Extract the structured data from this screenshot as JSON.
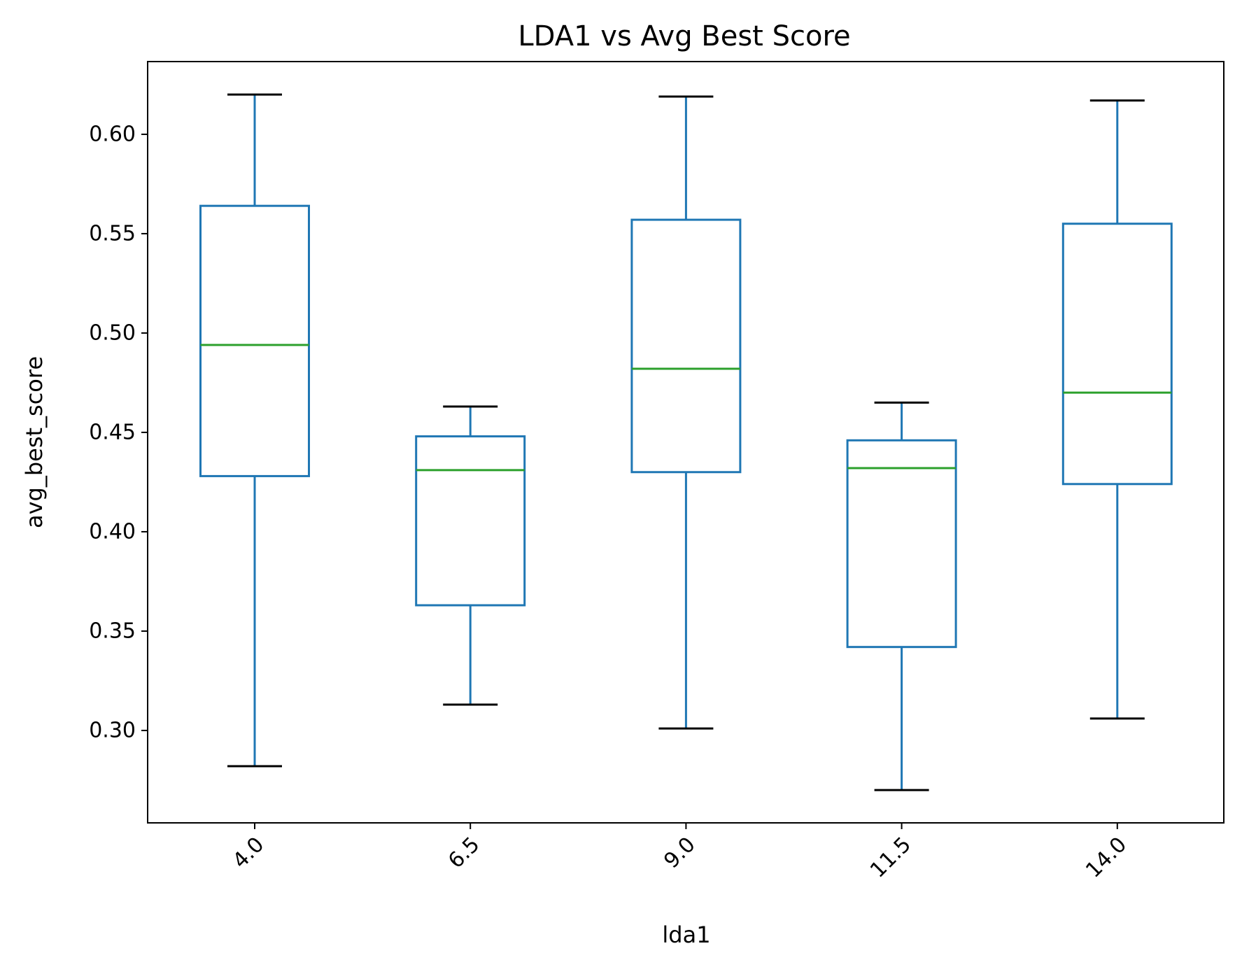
{
  "chart_data": {
    "type": "box",
    "title": "LDA1 vs Avg Best Score",
    "xlabel": "lda1",
    "ylabel": "avg_best_score",
    "categories": [
      "4.0",
      "6.5",
      "9.0",
      "11.5",
      "14.0"
    ],
    "boxes": [
      {
        "category": "4.0",
        "whislo": 0.282,
        "q1": 0.428,
        "median": 0.494,
        "q3": 0.564,
        "whishi": 0.62
      },
      {
        "category": "6.5",
        "whislo": 0.313,
        "q1": 0.363,
        "median": 0.431,
        "q3": 0.448,
        "whishi": 0.463
      },
      {
        "category": "9.0",
        "whislo": 0.301,
        "q1": 0.43,
        "median": 0.482,
        "q3": 0.557,
        "whishi": 0.619
      },
      {
        "category": "11.5",
        "whislo": 0.27,
        "q1": 0.342,
        "median": 0.432,
        "q3": 0.446,
        "whishi": 0.465
      },
      {
        "category": "14.0",
        "whislo": 0.306,
        "q1": 0.424,
        "median": 0.47,
        "q3": 0.555,
        "whishi": 0.617
      }
    ],
    "yticks": [
      0.3,
      0.35,
      0.4,
      0.45,
      0.5,
      0.55,
      0.6
    ],
    "ytick_labels": [
      "0.30",
      "0.35",
      "0.40",
      "0.45",
      "0.50",
      "0.55",
      "0.60"
    ],
    "ylim": [
      0.2535,
      0.6366
    ],
    "xtick_rotation_deg": 45,
    "grid": false,
    "legend": "none",
    "colors": {
      "box": "#1f77b4",
      "median": "#2ca02c",
      "cap": "#000000",
      "axes": "#000000"
    }
  }
}
